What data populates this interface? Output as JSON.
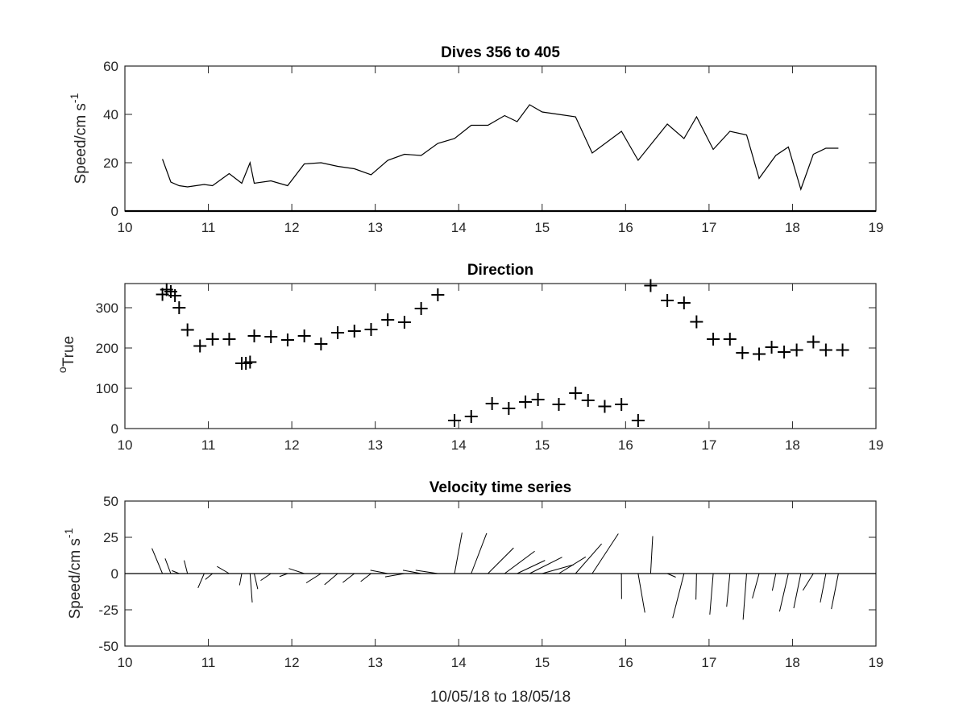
{
  "figure": {
    "xlabel": "10/05/18 to 18/05/18",
    "xticks": [
      "10",
      "11",
      "12",
      "13",
      "14",
      "15",
      "16",
      "17",
      "18",
      "19"
    ]
  },
  "chart_data": [
    {
      "type": "line",
      "title": "Dives 356 to 405",
      "ylabel_main": "Speed/cm s",
      "ylabel_sup": "-1",
      "xlim": [
        10,
        19
      ],
      "ylim": [
        0,
        60
      ],
      "yticks": [
        "0",
        "20",
        "40",
        "60"
      ],
      "x": [
        10.45,
        10.55,
        10.65,
        10.75,
        10.85,
        10.95,
        11.05,
        11.25,
        11.4,
        11.5,
        11.55,
        11.75,
        11.95,
        12.15,
        12.35,
        12.55,
        12.75,
        12.95,
        13.15,
        13.35,
        13.55,
        13.75,
        13.95,
        14.15,
        14.35,
        14.55,
        14.7,
        14.85,
        15.0,
        15.2,
        15.4,
        15.6,
        15.95,
        16.15,
        16.5,
        16.7,
        16.85,
        17.05,
        17.25,
        17.45,
        17.6,
        17.8,
        17.95,
        18.1,
        18.25,
        18.4,
        18.55
      ],
      "y": [
        21.5,
        12,
        10.5,
        10,
        10.5,
        11,
        10.5,
        15.5,
        11.5,
        20,
        11.5,
        12.5,
        10.5,
        19.5,
        20,
        18.5,
        17.5,
        15,
        21,
        23.5,
        23,
        28,
        30,
        35.5,
        35.5,
        39.5,
        37,
        44,
        41,
        40,
        39,
        24,
        33,
        21,
        36,
        30,
        39,
        25.5,
        33,
        31.5,
        13.5,
        23,
        26.5,
        9,
        23.5,
        26,
        26
      ]
    },
    {
      "type": "scatter",
      "title": "Direction",
      "ylabel_main": "True",
      "ylabel_sup": "o",
      "marker": "+",
      "xlim": [
        10,
        19
      ],
      "ylim": [
        0,
        360
      ],
      "yticks": [
        "0",
        "100",
        "200",
        "300"
      ],
      "x": [
        10.45,
        10.5,
        10.55,
        10.6,
        10.65,
        10.75,
        10.9,
        11.05,
        11.25,
        11.4,
        11.45,
        11.5,
        11.55,
        11.75,
        11.95,
        12.15,
        12.35,
        12.55,
        12.75,
        12.95,
        13.15,
        13.35,
        13.55,
        13.75,
        13.95,
        14.15,
        14.4,
        14.6,
        14.8,
        14.95,
        15.2,
        15.4,
        15.55,
        15.75,
        15.95,
        16.15,
        16.3,
        16.5,
        16.7,
        16.85,
        17.05,
        17.25,
        17.4,
        17.6,
        17.75,
        17.9,
        18.05,
        18.25,
        18.4,
        18.6
      ],
      "y": [
        333,
        345,
        340,
        330,
        300,
        245,
        205,
        222,
        222,
        162,
        162,
        165,
        230,
        228,
        220,
        230,
        210,
        238,
        242,
        246,
        270,
        264,
        298,
        332,
        20,
        30,
        62,
        50,
        66,
        72,
        60,
        88,
        70,
        55,
        60,
        20,
        355,
        318,
        312,
        265,
        222,
        222,
        188,
        185,
        202,
        190,
        195,
        215,
        195,
        195
      ]
    },
    {
      "type": "line",
      "subtype": "stick (feather) plot",
      "title": "Velocity time series",
      "ylabel_main": "Speed/cm s",
      "ylabel_sup": "-1",
      "xlim": [
        10,
        19
      ],
      "ylim": [
        -50,
        50
      ],
      "yticks": [
        "-50",
        "-25",
        "0",
        "25",
        "50"
      ],
      "x": [
        10.45,
        10.55,
        10.65,
        10.75,
        10.85,
        10.95,
        11.05,
        11.25,
        11.4,
        11.5,
        11.55,
        11.75,
        11.95,
        12.15,
        12.35,
        12.55,
        12.75,
        12.95,
        13.15,
        13.35,
        13.55,
        13.75,
        13.95,
        14.15,
        14.35,
        14.55,
        14.7,
        14.85,
        15.0,
        15.2,
        15.4,
        15.6,
        15.95,
        16.15,
        16.3,
        16.5,
        16.7,
        16.85,
        17.05,
        17.25,
        17.45,
        17.6,
        17.8,
        17.95,
        18.1,
        18.25,
        18.4,
        18.55
      ],
      "u": [
        -12.6,
        -6.8,
        -8.7,
        -4,
        -10.2,
        -7.4,
        -8.6,
        -14.6,
        -2.6,
        2.6,
        4.2,
        -12.3,
        -9.7,
        -18.6,
        -17.6,
        -15.8,
        -13.9,
        -12.4,
        -20.8,
        -23.2,
        -21.8,
        -26.6,
        9,
        18.5,
        30.8,
        36.1,
        33.4,
        38.9,
        37.8,
        32.2,
        31.3,
        31.3,
        0.2,
        8.1,
        2.5,
        10.1,
        -13.6,
        -0.7,
        -4.1,
        -3.9,
        -4.2,
        -8.1,
        -4.2,
        -10.5,
        -8.5,
        -12.5,
        -6.7,
        -8.4
      ],
      "v": [
        17.4,
        10.4,
        2,
        9.1,
        0,
        -9.9,
        -4.1,
        4.9,
        -8.1,
        -19.9,
        -10.7,
        -4.8,
        -2.1,
        3.5,
        -6.4,
        -7.7,
        -6.2,
        -5.5,
        2.3,
        -2.3,
        2.3,
        2.3,
        28.2,
        27.8,
        17.7,
        15.4,
        9.1,
        11.3,
        6.1,
        11.5,
        20.5,
        27.5,
        -17.6,
        -26.9,
        25.8,
        -2.5,
        -30.7,
        -18,
        -28.3,
        -22.9,
        -31.8,
        -17.1,
        -11.8,
        -26.2,
        -23.9,
        -11.6,
        -19.9,
        -24.5
      ]
    }
  ]
}
